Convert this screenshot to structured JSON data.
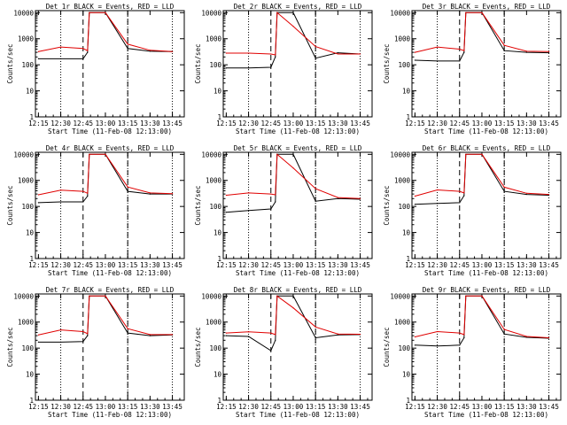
{
  "figure": {
    "xlabel": "Start Time (11-Feb-08 12:13:00)",
    "ylabel": "Counts/sec",
    "x_tick_labels": [
      "12:15",
      "12:30",
      "12:45",
      "13:00",
      "13:15",
      "13:30",
      "13:45"
    ],
    "y_tick_labels": [
      "1",
      "10",
      "100",
      "1000",
      "10000"
    ],
    "series_colors": {
      "events": "#000000",
      "lld": "#e00000"
    }
  },
  "chart_data": [
    {
      "type": "line",
      "title": "Det 1r BLACK = Events, RED = LLD",
      "x": [
        12.25,
        12.5,
        12.75,
        12.8,
        12.82,
        13.0,
        13.25,
        13.5,
        13.75
      ],
      "series": [
        {
          "values": [
            170,
            170,
            170,
            300,
            10000,
            10000,
            420,
            330,
            320
          ]
        },
        {
          "values": [
            320,
            480,
            420,
            350,
            10000,
            10000,
            620,
            360,
            320
          ]
        }
      ],
      "xlim": [
        "12:13",
        "13:53"
      ],
      "ylim": [
        1,
        12000
      ],
      "yscale": "log"
    },
    {
      "type": "line",
      "title": "Det 2r BLACK = Events, RED = LLD",
      "x": [
        12.25,
        12.5,
        12.75,
        12.8,
        12.82,
        13.0,
        13.25,
        13.5,
        13.75
      ],
      "series": [
        {
          "values": [
            75,
            75,
            80,
            200,
            10000,
            10000,
            180,
            290,
            260
          ]
        },
        {
          "values": [
            280,
            280,
            260,
            240,
            10000,
            3000,
            500,
            260,
            260
          ]
        }
      ],
      "xlim": [
        "12:13",
        "13:53"
      ],
      "ylim": [
        1,
        12000
      ],
      "yscale": "log"
    },
    {
      "type": "line",
      "title": "Det 3r BLACK = Events, RED = LLD",
      "x": [
        12.25,
        12.5,
        12.75,
        12.8,
        12.82,
        13.0,
        13.25,
        13.5,
        13.75
      ],
      "series": [
        {
          "values": [
            150,
            140,
            140,
            300,
            10000,
            10000,
            350,
            300,
            290
          ]
        },
        {
          "values": [
            300,
            480,
            400,
            350,
            10000,
            10000,
            560,
            330,
            320
          ]
        }
      ],
      "xlim": [
        "12:13",
        "13:53"
      ],
      "ylim": [
        1,
        12000
      ],
      "yscale": "log"
    },
    {
      "type": "line",
      "title": "Det 4r BLACK = Events, RED = LLD",
      "x": [
        12.25,
        12.5,
        12.75,
        12.8,
        12.82,
        13.0,
        13.25,
        13.5,
        13.75
      ],
      "series": [
        {
          "values": [
            140,
            150,
            150,
            250,
            10000,
            10000,
            380,
            300,
            300
          ]
        },
        {
          "values": [
            280,
            420,
            380,
            320,
            10000,
            10000,
            560,
            330,
            310
          ]
        }
      ],
      "xlim": [
        "12:13",
        "13:53"
      ],
      "ylim": [
        1,
        12000
      ],
      "yscale": "log"
    },
    {
      "type": "line",
      "title": "Det 5r BLACK = Events, RED = LLD",
      "x": [
        12.25,
        12.5,
        12.75,
        12.8,
        12.82,
        13.0,
        13.25,
        13.5,
        13.75
      ],
      "series": [
        {
          "values": [
            60,
            70,
            80,
            150,
            10000,
            10000,
            160,
            200,
            190
          ]
        },
        {
          "values": [
            270,
            330,
            300,
            280,
            10000,
            3000,
            480,
            220,
            200
          ]
        }
      ],
      "xlim": [
        "12:13",
        "13:53"
      ],
      "ylim": [
        1,
        12000
      ],
      "yscale": "log"
    },
    {
      "type": "line",
      "title": "Det 6r BLACK = Events, RED = LLD",
      "x": [
        12.25,
        12.5,
        12.75,
        12.8,
        12.82,
        13.0,
        13.25,
        13.5,
        13.75
      ],
      "series": [
        {
          "values": [
            120,
            130,
            140,
            260,
            10000,
            10000,
            380,
            290,
            270
          ]
        },
        {
          "values": [
            250,
            430,
            380,
            330,
            10000,
            10000,
            550,
            320,
            290
          ]
        }
      ],
      "xlim": [
        "12:13",
        "13:53"
      ],
      "ylim": [
        1,
        12000
      ],
      "yscale": "log"
    },
    {
      "type": "line",
      "title": "Det 7r BLACK = Events, RED = LLD",
      "x": [
        12.25,
        12.5,
        12.75,
        12.8,
        12.82,
        13.0,
        13.25,
        13.5,
        13.75
      ],
      "series": [
        {
          "values": [
            170,
            170,
            180,
            300,
            10000,
            10000,
            380,
            300,
            320
          ]
        },
        {
          "values": [
            320,
            500,
            430,
            360,
            10000,
            10000,
            560,
            330,
            330
          ]
        }
      ],
      "xlim": [
        "12:13",
        "13:53"
      ],
      "ylim": [
        1,
        12000
      ],
      "yscale": "log"
    },
    {
      "type": "line",
      "title": "Det 8r BLACK = Events, RED = LLD",
      "x": [
        12.25,
        12.5,
        12.75,
        12.8,
        12.82,
        13.0,
        13.25,
        13.5,
        13.75
      ],
      "series": [
        {
          "values": [
            300,
            280,
            80,
            200,
            10000,
            10000,
            250,
            320,
            330
          ]
        },
        {
          "values": [
            380,
            420,
            380,
            330,
            10000,
            3500,
            650,
            350,
            340
          ]
        }
      ],
      "xlim": [
        "12:13",
        "13:53"
      ],
      "ylim": [
        1,
        12000
      ],
      "yscale": "log"
    },
    {
      "type": "line",
      "title": "Det 9r BLACK = Events, RED = LLD",
      "x": [
        12.25,
        12.5,
        12.75,
        12.8,
        12.82,
        13.0,
        13.25,
        13.5,
        13.75
      ],
      "series": [
        {
          "values": [
            130,
            120,
            130,
            250,
            10000,
            10000,
            350,
            260,
            240
          ]
        },
        {
          "values": [
            270,
            430,
            380,
            330,
            10000,
            10000,
            520,
            280,
            250
          ]
        }
      ],
      "xlim": [
        "12:13",
        "13:53"
      ],
      "ylim": [
        1,
        12000
      ],
      "yscale": "log"
    }
  ]
}
